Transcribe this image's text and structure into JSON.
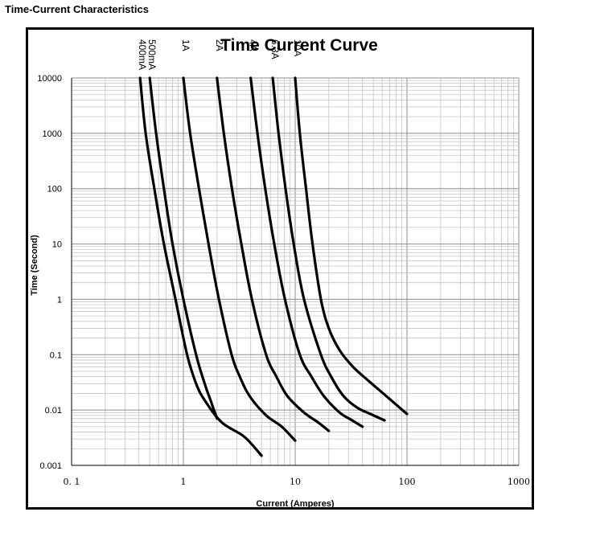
{
  "page": {
    "heading": "Time-Current Characteristics"
  },
  "chart_data": {
    "type": "line",
    "title": "Time Current Curve",
    "xlabel": "Current  (Amperes)",
    "ylabel": "Time (Second)",
    "x_scale": "log",
    "y_scale": "log",
    "xlim": [
      0.1,
      1000
    ],
    "ylim": [
      0.001,
      10000
    ],
    "x_ticks": [
      {
        "value": 0.1,
        "label": "0. 1"
      },
      {
        "value": 1,
        "label": "1"
      },
      {
        "value": 10,
        "label": "10"
      },
      {
        "value": 100,
        "label": "100"
      },
      {
        "value": 1000,
        "label": "1000"
      }
    ],
    "y_ticks": [
      {
        "value": 10000,
        "label": "10000"
      },
      {
        "value": 1000,
        "label": "1000"
      },
      {
        "value": 100,
        "label": "100"
      },
      {
        "value": 10,
        "label": "10"
      },
      {
        "value": 1,
        "label": "1"
      },
      {
        "value": 0.1,
        "label": "0.1"
      },
      {
        "value": 0.01,
        "label": "0.01"
      },
      {
        "value": 0.001,
        "label": "0.001"
      }
    ],
    "grid": true,
    "legend": "none",
    "series": [
      {
        "name": "400mA",
        "points": [
          [
            0.41,
            10000
          ],
          [
            0.46,
            1000
          ],
          [
            0.55,
            100
          ],
          [
            0.67,
            10
          ],
          [
            0.85,
            1
          ],
          [
            1.08,
            0.1
          ],
          [
            1.3,
            0.03
          ],
          [
            1.55,
            0.015
          ],
          [
            2.2,
            0.006
          ],
          [
            3.5,
            0.0033
          ],
          [
            5.0,
            0.0015
          ]
        ]
      },
      {
        "name": "500mA",
        "points": [
          [
            0.5,
            10000
          ],
          [
            0.57,
            1000
          ],
          [
            0.67,
            100
          ],
          [
            0.8,
            10
          ],
          [
            1.0,
            1
          ],
          [
            1.3,
            0.1
          ],
          [
            1.55,
            0.03
          ],
          [
            1.75,
            0.015
          ],
          [
            2.0,
            0.007
          ]
        ]
      },
      {
        "name": "1A",
        "points": [
          [
            1.0,
            10000
          ],
          [
            1.15,
            1000
          ],
          [
            1.38,
            100
          ],
          [
            1.68,
            10
          ],
          [
            2.08,
            1
          ],
          [
            2.7,
            0.1
          ],
          [
            3.2,
            0.04
          ],
          [
            3.9,
            0.018
          ],
          [
            5.5,
            0.008
          ],
          [
            7.6,
            0.005
          ],
          [
            10,
            0.0028
          ]
        ]
      },
      {
        "name": "2A",
        "points": [
          [
            2.0,
            10000
          ],
          [
            2.3,
            1000
          ],
          [
            2.72,
            100
          ],
          [
            3.3,
            10
          ],
          [
            4.1,
            1
          ],
          [
            5.5,
            0.1
          ],
          [
            6.8,
            0.04
          ],
          [
            8.5,
            0.018
          ],
          [
            12,
            0.009
          ],
          [
            16,
            0.006
          ],
          [
            20,
            0.0042
          ]
        ]
      },
      {
        "name": "4A",
        "points": [
          [
            4.0,
            10000
          ],
          [
            4.6,
            1000
          ],
          [
            5.4,
            100
          ],
          [
            6.5,
            10
          ],
          [
            8.1,
            1
          ],
          [
            11,
            0.1
          ],
          [
            14,
            0.04
          ],
          [
            18,
            0.018
          ],
          [
            25,
            0.009
          ],
          [
            32,
            0.0066
          ],
          [
            40,
            0.005
          ]
        ]
      },
      {
        "name": "6.3A",
        "points": [
          [
            6.3,
            10000
          ],
          [
            7.1,
            1000
          ],
          [
            8.2,
            100
          ],
          [
            9.7,
            10
          ],
          [
            12,
            1
          ],
          [
            17,
            0.1
          ],
          [
            21,
            0.04
          ],
          [
            27,
            0.018
          ],
          [
            36,
            0.011
          ],
          [
            47,
            0.0085
          ],
          [
            63,
            0.0065
          ]
        ]
      },
      {
        "name": "10A",
        "points": [
          [
            10,
            10000
          ],
          [
            11,
            1000
          ],
          [
            12.5,
            100
          ],
          [
            14.3,
            10
          ],
          [
            17,
            1
          ],
          [
            20,
            0.3
          ],
          [
            25,
            0.12
          ],
          [
            33,
            0.06
          ],
          [
            45,
            0.034
          ],
          [
            65,
            0.018
          ],
          [
            100,
            0.0085
          ]
        ]
      }
    ]
  }
}
